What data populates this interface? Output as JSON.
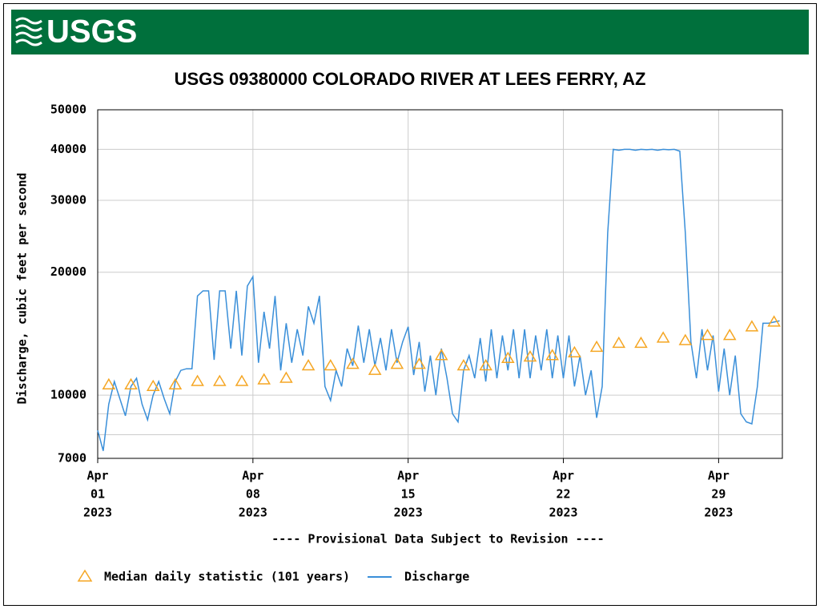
{
  "header": {
    "logo": "USGS"
  },
  "chart_data": {
    "type": "line",
    "title": "USGS 09380000 COLORADO RIVER AT LEES FERRY, AZ",
    "y_label": "Discharge, cubic feet per second",
    "annotation": "---- Provisional Data Subject to Revision ----",
    "annotation_color": "#ff0000",
    "log_y": true,
    "grid": true,
    "ylim": [
      7000,
      50000
    ],
    "yticks": [
      7000,
      10000,
      20000,
      30000,
      40000,
      50000
    ],
    "minor_yticks": [
      8000,
      9000
    ],
    "xlim": [
      "2023-04-01T00:00",
      "2023-05-01T21:00"
    ],
    "xticks": [
      {
        "value": "2023-04-01T00:00",
        "label": [
          "Apr",
          "01",
          "2023"
        ]
      },
      {
        "value": "2023-04-08T00:00",
        "label": [
          "Apr",
          "08",
          "2023"
        ]
      },
      {
        "value": "2023-04-15T00:00",
        "label": [
          "Apr",
          "15",
          "2023"
        ]
      },
      {
        "value": "2023-04-22T00:00",
        "label": [
          "Apr",
          "22",
          "2023"
        ]
      },
      {
        "value": "2023-04-29T00:00",
        "label": [
          "Apr",
          "29",
          "2023"
        ]
      }
    ],
    "series": [
      {
        "name": "Median daily statistic (101 years)",
        "color": "#f5a623",
        "marker": "triangle",
        "x": [
          "2023-04-01T12:00",
          "2023-04-02T12:00",
          "2023-04-03T12:00",
          "2023-04-04T12:00",
          "2023-04-05T12:00",
          "2023-04-06T12:00",
          "2023-04-07T12:00",
          "2023-04-08T12:00",
          "2023-04-09T12:00",
          "2023-04-10T12:00",
          "2023-04-11T12:00",
          "2023-04-12T12:00",
          "2023-04-13T12:00",
          "2023-04-14T12:00",
          "2023-04-15T12:00",
          "2023-04-16T12:00",
          "2023-04-17T12:00",
          "2023-04-18T12:00",
          "2023-04-19T12:00",
          "2023-04-20T12:00",
          "2023-04-21T12:00",
          "2023-04-22T12:00",
          "2023-04-23T12:00",
          "2023-04-24T12:00",
          "2023-04-25T12:00",
          "2023-04-26T12:00",
          "2023-04-27T12:00",
          "2023-04-28T12:00",
          "2023-04-29T12:00",
          "2023-04-30T12:00",
          "2023-05-01T12:00"
        ],
        "values": [
          10600,
          10600,
          10500,
          10600,
          10800,
          10800,
          10800,
          10900,
          11000,
          11800,
          11800,
          11900,
          11500,
          11900,
          11900,
          12500,
          11800,
          11800,
          12300,
          12400,
          12500,
          12700,
          13100,
          13400,
          13400,
          13800,
          13600,
          14000,
          14000,
          14700,
          15100
        ]
      },
      {
        "name": "Discharge",
        "color": "#3a8fd9",
        "marker": "line",
        "x": [
          "2023-04-01T00:00",
          "2023-04-01T06:00",
          "2023-04-01T12:00",
          "2023-04-01T18:00",
          "2023-04-02T00:00",
          "2023-04-02T06:00",
          "2023-04-02T12:00",
          "2023-04-02T18:00",
          "2023-04-03T00:00",
          "2023-04-03T06:00",
          "2023-04-03T12:00",
          "2023-04-03T18:00",
          "2023-04-04T00:00",
          "2023-04-04T06:00",
          "2023-04-04T12:00",
          "2023-04-04T18:00",
          "2023-04-05T00:00",
          "2023-04-05T06:00",
          "2023-04-05T12:00",
          "2023-04-05T18:00",
          "2023-04-06T00:00",
          "2023-04-06T06:00",
          "2023-04-06T12:00",
          "2023-04-06T18:00",
          "2023-04-07T00:00",
          "2023-04-07T06:00",
          "2023-04-07T12:00",
          "2023-04-07T18:00",
          "2023-04-08T00:00",
          "2023-04-08T06:00",
          "2023-04-08T12:00",
          "2023-04-08T18:00",
          "2023-04-09T00:00",
          "2023-04-09T06:00",
          "2023-04-09T12:00",
          "2023-04-09T18:00",
          "2023-04-10T00:00",
          "2023-04-10T06:00",
          "2023-04-10T12:00",
          "2023-04-10T18:00",
          "2023-04-11T00:00",
          "2023-04-11T06:00",
          "2023-04-11T12:00",
          "2023-04-11T18:00",
          "2023-04-12T00:00",
          "2023-04-12T06:00",
          "2023-04-12T12:00",
          "2023-04-12T18:00",
          "2023-04-13T00:00",
          "2023-04-13T06:00",
          "2023-04-13T12:00",
          "2023-04-13T18:00",
          "2023-04-14T00:00",
          "2023-04-14T06:00",
          "2023-04-14T12:00",
          "2023-04-14T18:00",
          "2023-04-15T00:00",
          "2023-04-15T06:00",
          "2023-04-15T12:00",
          "2023-04-15T18:00",
          "2023-04-16T00:00",
          "2023-04-16T06:00",
          "2023-04-16T12:00",
          "2023-04-16T18:00",
          "2023-04-17T00:00",
          "2023-04-17T06:00",
          "2023-04-17T12:00",
          "2023-04-17T18:00",
          "2023-04-18T00:00",
          "2023-04-18T06:00",
          "2023-04-18T12:00",
          "2023-04-18T18:00",
          "2023-04-19T00:00",
          "2023-04-19T06:00",
          "2023-04-19T12:00",
          "2023-04-19T18:00",
          "2023-04-20T00:00",
          "2023-04-20T06:00",
          "2023-04-20T12:00",
          "2023-04-20T18:00",
          "2023-04-21T00:00",
          "2023-04-21T06:00",
          "2023-04-21T12:00",
          "2023-04-21T18:00",
          "2023-04-22T00:00",
          "2023-04-22T06:00",
          "2023-04-22T12:00",
          "2023-04-22T18:00",
          "2023-04-23T00:00",
          "2023-04-23T06:00",
          "2023-04-23T12:00",
          "2023-04-23T18:00",
          "2023-04-24T00:00",
          "2023-04-24T06:00",
          "2023-04-24T12:00",
          "2023-04-24T18:00",
          "2023-04-25T00:00",
          "2023-04-25T06:00",
          "2023-04-25T12:00",
          "2023-04-25T18:00",
          "2023-04-26T00:00",
          "2023-04-26T06:00",
          "2023-04-26T12:00",
          "2023-04-26T18:00",
          "2023-04-27T00:00",
          "2023-04-27T06:00",
          "2023-04-27T12:00",
          "2023-04-27T18:00",
          "2023-04-28T00:00",
          "2023-04-28T06:00",
          "2023-04-28T12:00",
          "2023-04-28T18:00",
          "2023-04-29T00:00",
          "2023-04-29T06:00",
          "2023-04-29T12:00",
          "2023-04-29T18:00",
          "2023-04-30T00:00",
          "2023-04-30T06:00",
          "2023-04-30T12:00",
          "2023-04-30T18:00",
          "2023-05-01T00:00",
          "2023-05-01T06:00",
          "2023-05-01T12:00",
          "2023-05-01T18:00"
        ],
        "values": [
          8200,
          7300,
          9500,
          10800,
          9800,
          8900,
          10500,
          11000,
          9500,
          8700,
          10000,
          10800,
          9800,
          9000,
          10800,
          11500,
          11600,
          11600,
          17500,
          18000,
          18000,
          12200,
          18000,
          18000,
          13000,
          18000,
          12500,
          18500,
          19500,
          12000,
          16000,
          13000,
          17500,
          11500,
          15000,
          12000,
          14500,
          12500,
          16500,
          15000,
          17500,
          10500,
          9700,
          11500,
          10500,
          13000,
          11800,
          14800,
          12000,
          14500,
          11800,
          13800,
          11500,
          14500,
          12000,
          13500,
          14700,
          11200,
          13500,
          10200,
          12500,
          10000,
          13000,
          11000,
          9000,
          8600,
          11500,
          12500,
          11000,
          13800,
          10800,
          14500,
          11000,
          14000,
          11500,
          14500,
          11000,
          14500,
          11000,
          14000,
          11500,
          14500,
          11000,
          14000,
          11000,
          14000,
          10500,
          12500,
          10000,
          11500,
          8800,
          10500,
          25000,
          40000,
          39800,
          40000,
          40000,
          39800,
          40000,
          39900,
          40000,
          39800,
          40000,
          39900,
          40000,
          39600,
          25000,
          13500,
          11000,
          14500,
          11500,
          14000,
          10200,
          13000,
          10000,
          12500,
          9000,
          8600,
          8500,
          10500,
          15000,
          15000,
          15100,
          15200
        ]
      }
    ]
  }
}
